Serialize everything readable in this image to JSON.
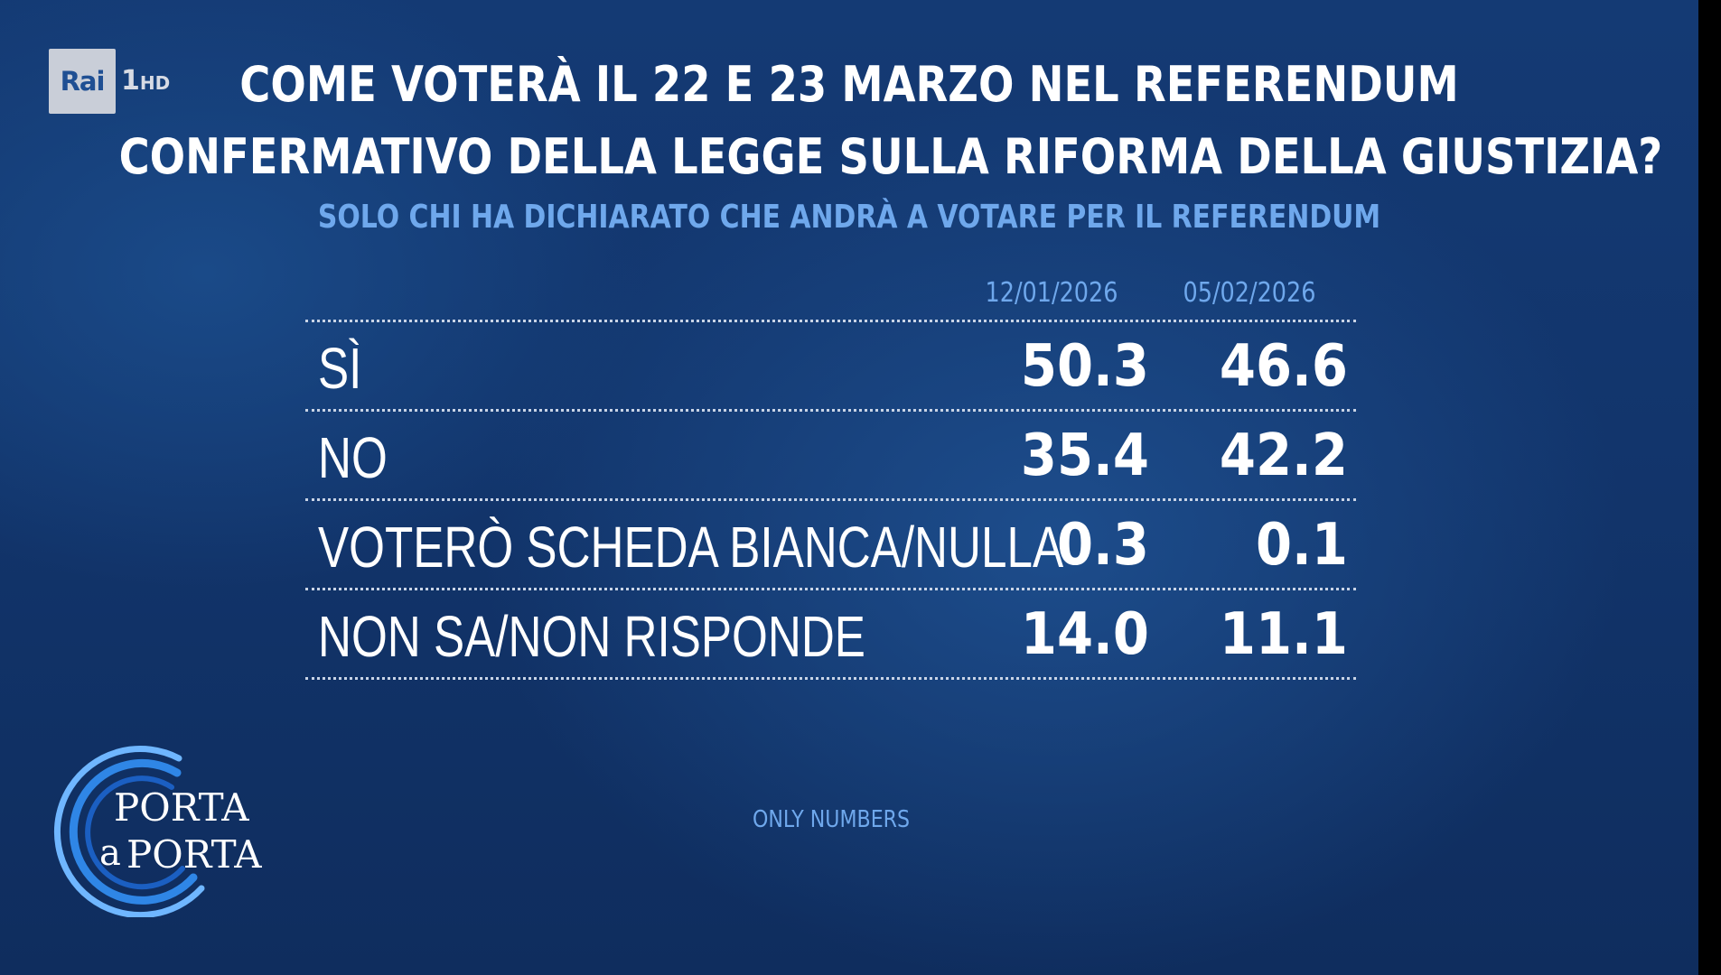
{
  "broadcaster": {
    "logo_text": "Rai",
    "channel_number": "1",
    "channel_suffix": "HD"
  },
  "header": {
    "title_line1": "COME VOTERÀ IL 22 E 23 MARZO NEL REFERENDUM",
    "title_line2": "CONFERMATIVO DELLA LEGGE SULLA RIFORMA DELLA GIUSTIZIA?",
    "subtitle": "SOLO CHI HA DICHIARATO CHE ANDRÀ A VOTARE PER IL REFERENDUM"
  },
  "chart_data": {
    "type": "table",
    "title": "COME VOTERÀ IL 22 E 23 MARZO NEL REFERENDUM CONFERMATIVO DELLA LEGGE SULLA RIFORMA DELLA GIUSTIZIA?",
    "subtitle": "SOLO CHI HA DICHIARATO CHE ANDRÀ A VOTARE PER IL REFERENDUM",
    "columns": [
      "12/01/2026",
      "05/02/2026"
    ],
    "rows": [
      {
        "label": "SÌ",
        "values": [
          "50.3",
          "46.6"
        ]
      },
      {
        "label": "NO",
        "values": [
          "35.4",
          "42.2"
        ]
      },
      {
        "label": "VOTERÒ SCHEDA BIANCA/NULLA",
        "values": [
          "0.3",
          "0.1"
        ]
      },
      {
        "label": "NON SA/NON RISPONDE",
        "values": [
          "14.0",
          "11.1"
        ]
      }
    ],
    "source": "ONLY NUMBERS"
  },
  "program_logo": {
    "line1": "PORTA",
    "a": "a",
    "line2": "PORTA"
  },
  "colors": {
    "background": "#143a74",
    "title": "#ffffff",
    "accent": "#6fa8ec",
    "rule": "#c9d4e6"
  }
}
